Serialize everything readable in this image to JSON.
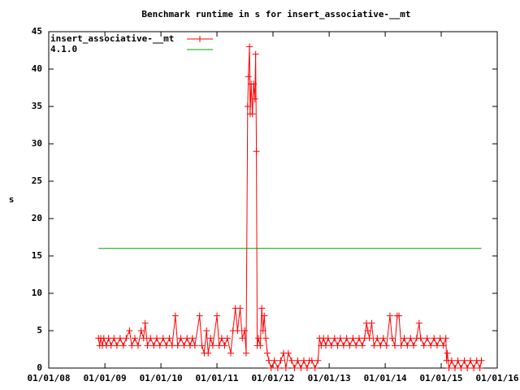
{
  "chart_data": {
    "type": "line",
    "title": "Benchmark runtime in s for insert_associative-__mt",
    "ylabel": "s",
    "xlim": [
      "2008-01-01",
      "2016-01-01"
    ],
    "xticks": [
      {
        "value": "2008-01-01",
        "label": "01/01/08"
      },
      {
        "value": "2009-01-01",
        "label": "01/01/09"
      },
      {
        "value": "2010-01-01",
        "label": "01/01/10"
      },
      {
        "value": "2011-01-01",
        "label": "01/01/11"
      },
      {
        "value": "2012-01-01",
        "label": "01/01/12"
      },
      {
        "value": "2013-01-01",
        "label": "01/01/13"
      },
      {
        "value": "2014-01-01",
        "label": "01/01/14"
      },
      {
        "value": "2015-01-01",
        "label": "01/01/15"
      },
      {
        "value": "2016-01-01",
        "label": "01/01/16"
      }
    ],
    "ylim": [
      0,
      45
    ],
    "yticks": [
      0,
      5,
      10,
      15,
      20,
      25,
      30,
      35,
      40,
      45
    ],
    "legend": "top-left",
    "grid": false,
    "series": [
      {
        "name": "insert_associative-__mt",
        "color": "#ff0000",
        "marker": "+",
        "x": [
          "2008-11-20",
          "2008-11-28",
          "2008-12-05",
          "2008-12-15",
          "2008-12-25",
          "2009-01-10",
          "2009-01-25",
          "2009-02-10",
          "2009-03-01",
          "2009-03-20",
          "2009-04-10",
          "2009-05-01",
          "2009-05-20",
          "2009-06-10",
          "2009-06-25",
          "2009-07-15",
          "2009-08-05",
          "2009-08-25",
          "2009-09-10",
          "2009-09-20",
          "2009-10-05",
          "2009-10-25",
          "2009-11-15",
          "2009-12-05",
          "2009-12-25",
          "2010-01-15",
          "2010-02-05",
          "2010-02-25",
          "2010-03-15",
          "2010-04-05",
          "2010-04-20",
          "2010-05-10",
          "2010-06-01",
          "2010-06-20",
          "2010-07-10",
          "2010-07-25",
          "2010-08-10",
          "2010-09-10",
          "2010-09-25",
          "2010-10-10",
          "2010-10-25",
          "2010-11-05",
          "2010-11-20",
          "2010-12-05",
          "2011-01-01",
          "2011-01-15",
          "2011-02-01",
          "2011-02-20",
          "2011-03-10",
          "2011-04-01",
          "2011-04-15",
          "2011-05-01",
          "2011-05-15",
          "2011-06-01",
          "2011-06-15",
          "2011-07-01",
          "2011-07-10",
          "2011-07-20",
          "2011-07-25",
          "2011-08-01",
          "2011-08-05",
          "2011-08-12",
          "2011-08-20",
          "2011-08-28",
          "2011-09-05",
          "2011-09-10",
          "2011-09-15",
          "2011-09-20",
          "2011-09-28",
          "2011-10-10",
          "2011-10-20",
          "2011-10-28",
          "2011-11-05",
          "2011-11-15",
          "2011-11-25",
          "2011-12-05",
          "2011-12-20",
          "2012-01-10",
          "2012-02-01",
          "2012-02-20",
          "2012-03-10",
          "2012-03-25",
          "2012-04-10",
          "2012-05-01",
          "2012-05-20",
          "2012-06-10",
          "2012-07-01",
          "2012-07-20",
          "2012-08-10",
          "2012-08-25",
          "2012-09-10",
          "2012-10-01",
          "2012-10-20",
          "2012-10-30",
          "2012-11-10",
          "2012-11-25",
          "2012-12-10",
          "2012-12-25",
          "2013-01-15",
          "2013-02-05",
          "2013-02-25",
          "2013-03-15",
          "2013-04-05",
          "2013-04-25",
          "2013-05-15",
          "2013-06-05",
          "2013-06-25",
          "2013-07-15",
          "2013-08-05",
          "2013-08-20",
          "2013-09-01",
          "2013-09-10",
          "2013-09-20",
          "2013-10-05",
          "2013-10-20",
          "2013-11-10",
          "2013-12-01",
          "2013-12-20",
          "2014-01-10",
          "2014-02-01",
          "2014-02-15",
          "2014-03-05",
          "2014-03-20",
          "2014-04-01",
          "2014-04-15",
          "2014-05-05",
          "2014-05-25",
          "2014-06-15",
          "2014-07-05",
          "2014-07-25",
          "2014-08-10",
          "2014-08-20",
          "2014-09-10",
          "2014-10-01",
          "2014-10-25",
          "2014-11-15",
          "2014-12-05",
          "2014-12-25",
          "2015-01-15",
          "2015-01-31",
          "2015-02-05",
          "2015-02-10",
          "2015-02-20",
          "2015-03-10",
          "2015-04-01",
          "2015-04-20",
          "2015-05-10",
          "2015-06-01",
          "2015-06-20",
          "2015-07-10",
          "2015-08-01",
          "2015-08-20",
          "2015-09-10",
          "2015-09-20"
        ],
        "values": [
          4,
          3,
          4,
          3,
          4,
          3,
          4,
          3,
          4,
          3,
          4,
          3,
          4,
          5,
          3,
          4,
          3,
          5,
          4,
          6,
          3,
          4,
          3,
          4,
          3,
          4,
          3,
          4,
          3,
          7,
          3,
          4,
          3,
          4,
          3,
          4,
          3,
          7,
          3,
          2,
          5,
          2,
          4,
          3,
          7,
          3,
          4,
          3,
          4,
          2,
          5,
          8,
          5,
          8,
          4,
          5,
          2,
          35,
          39,
          43,
          34,
          38,
          34,
          38,
          36,
          42,
          29,
          3,
          4,
          3,
          8,
          5,
          7,
          4,
          2,
          1,
          0,
          1,
          0,
          1,
          2,
          0,
          2,
          1,
          0,
          1,
          0,
          1,
          0,
          1,
          1,
          0,
          1,
          4,
          3,
          4,
          3,
          4,
          3,
          4,
          3,
          4,
          3,
          4,
          3,
          4,
          3,
          4,
          3,
          4,
          6,
          5,
          4,
          6,
          3,
          4,
          3,
          4,
          3,
          7,
          4,
          3,
          7,
          7,
          3,
          4,
          3,
          4,
          3,
          4,
          6,
          4,
          3,
          4,
          3,
          4,
          3,
          4,
          3,
          4,
          1,
          2,
          0,
          1,
          0,
          1,
          0,
          1,
          0,
          1,
          0,
          1,
          0,
          1
        ]
      },
      {
        "name": "4.1.0",
        "color": "#00a000",
        "marker": "none",
        "x": [
          "2008-11-20",
          "2015-09-20"
        ],
        "values": [
          16,
          16
        ]
      }
    ]
  }
}
